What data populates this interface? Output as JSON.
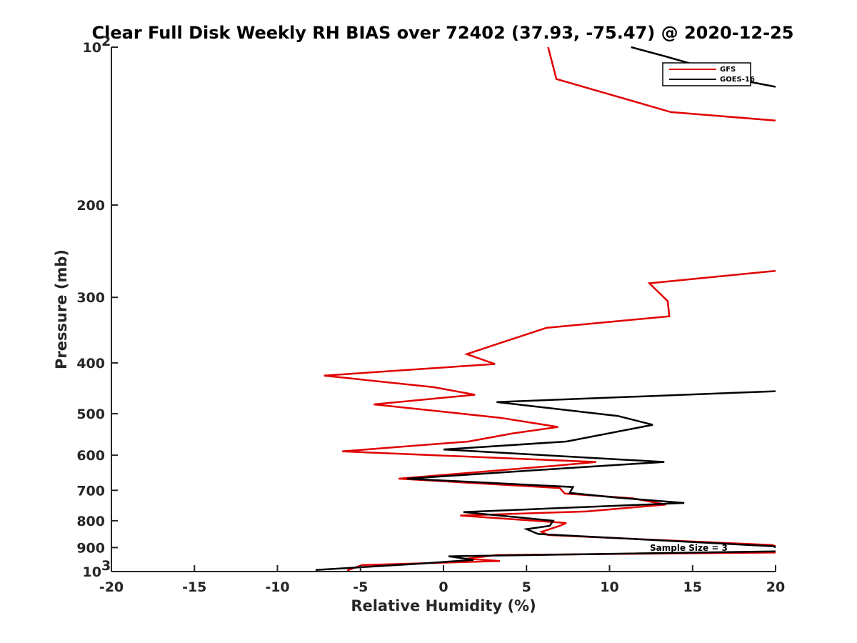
{
  "chart_data": {
    "type": "line",
    "title": "Clear Full Disk Weekly RH BIAS over 72402 (37.93, -75.47) @ 2020-12-25",
    "xlabel": "Relative Humidity (%)",
    "ylabel": "Pressure (mb)",
    "xlim": [
      -20,
      20
    ],
    "ylim": [
      100,
      1000
    ],
    "y_scale": "log",
    "y_reversed": true,
    "grid": false,
    "legend_position": "top-right",
    "x_ticks": [
      -20,
      -15,
      -10,
      -5,
      0,
      5,
      10,
      15,
      20
    ],
    "x_tick_labels": [
      "-20",
      "-15",
      "-10",
      "-5",
      "0",
      "5",
      "10",
      "15",
      "20"
    ],
    "y_ticks": [
      100,
      200,
      300,
      400,
      500,
      600,
      700,
      800,
      900,
      1000
    ],
    "y_tick_labels": [
      {
        "base": "10",
        "exp": "2"
      },
      {
        "base": "200",
        "exp": ""
      },
      {
        "base": "300",
        "exp": ""
      },
      {
        "base": "400",
        "exp": ""
      },
      {
        "base": "500",
        "exp": ""
      },
      {
        "base": "600",
        "exp": ""
      },
      {
        "base": "700",
        "exp": ""
      },
      {
        "base": "800",
        "exp": ""
      },
      {
        "base": "900",
        "exp": ""
      },
      {
        "base": "10",
        "exp": "3"
      }
    ],
    "annotation": "Sample Size = 3",
    "series": [
      {
        "name": "GFS",
        "color": "#e00000",
        "points": [
          [
            6.3,
            100
          ],
          [
            6.8,
            115
          ],
          [
            13.7,
            133
          ],
          [
            20.0,
            138
          ],
          [
            null,
            null
          ],
          [
            20.0,
            267
          ],
          [
            12.4,
            282
          ],
          [
            13.5,
            305
          ],
          [
            13.6,
            326
          ],
          [
            6.2,
            343
          ],
          [
            3.6,
            365
          ],
          [
            1.4,
            385
          ],
          [
            3.1,
            402
          ],
          [
            -7.2,
            423
          ],
          [
            -0.6,
            445
          ],
          [
            1.9,
            460
          ],
          [
            -4.2,
            480
          ],
          [
            3.4,
            509
          ],
          [
            6.9,
            530
          ],
          [
            4.2,
            545
          ],
          [
            1.5,
            565
          ],
          [
            -6.1,
            590
          ],
          [
            9.2,
            618
          ],
          [
            6.8,
            628
          ],
          [
            -2.7,
            665
          ],
          [
            7.0,
            693
          ],
          [
            7.3,
            710
          ],
          [
            11.4,
            725
          ],
          [
            13.4,
            745
          ],
          [
            8.6,
            768
          ],
          [
            1.0,
            782
          ],
          [
            7.4,
            808
          ],
          [
            7.0,
            818
          ],
          [
            5.9,
            840
          ],
          [
            6.3,
            852
          ],
          [
            19.8,
            890
          ],
          [
            20.0,
            895
          ],
          [
            null,
            null
          ],
          [
            20.0,
            920
          ],
          [
            3.2,
            930
          ],
          [
            1.4,
            945
          ],
          [
            3.4,
            955
          ],
          [
            -4.9,
            972
          ],
          [
            -5.8,
            995
          ]
        ]
      },
      {
        "name": "GOES-16",
        "color": "#000000",
        "points": [
          [
            11.3,
            100
          ],
          [
            13.3,
            104
          ],
          [
            16.0,
            110
          ],
          [
            16.3,
            113
          ],
          [
            20.0,
            119
          ],
          [
            null,
            null
          ],
          [
            20.0,
            453
          ],
          [
            3.2,
            475
          ],
          [
            10.5,
            505
          ],
          [
            12.6,
            525
          ],
          [
            7.4,
            565
          ],
          [
            0.0,
            585
          ],
          [
            13.3,
            618
          ],
          [
            8.1,
            633
          ],
          [
            -2.2,
            665
          ],
          [
            7.8,
            690
          ],
          [
            7.6,
            708
          ],
          [
            10.5,
            723
          ],
          [
            14.5,
            740
          ],
          [
            1.2,
            770
          ],
          [
            6.6,
            800
          ],
          [
            6.4,
            818
          ],
          [
            5.0,
            830
          ],
          [
            5.7,
            848
          ],
          [
            19.9,
            895
          ],
          [
            20.0,
            900
          ],
          [
            null,
            null
          ],
          [
            20.0,
            915
          ],
          [
            0.3,
            935
          ],
          [
            1.8,
            950
          ],
          [
            -1.2,
            965
          ],
          [
            -7.7,
            993
          ]
        ]
      }
    ]
  }
}
